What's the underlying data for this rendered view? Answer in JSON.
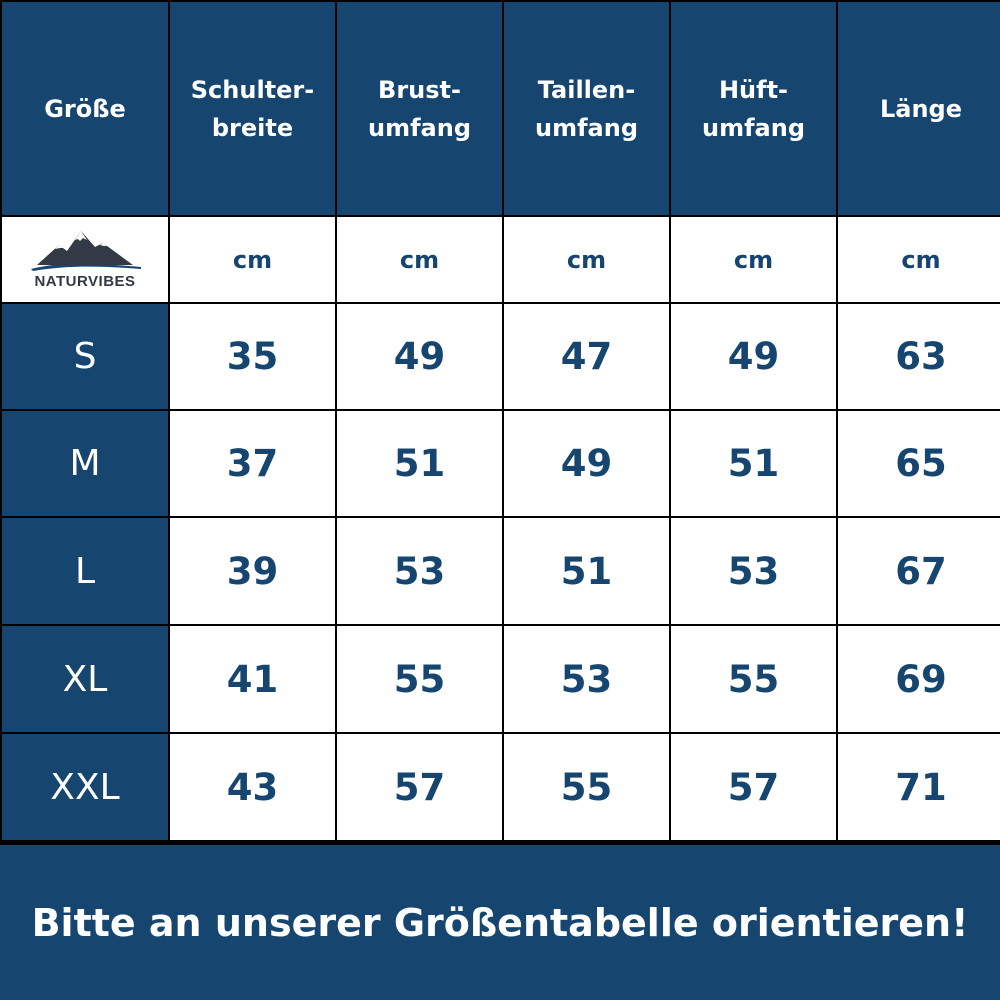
{
  "table": {
    "header": {
      "size": "Größe",
      "columns": [
        "Schulter-\nbreite",
        "Brust-\numfang",
        "Taillen-\numfang",
        "Hüft-\numfang",
        "Länge"
      ]
    },
    "brand": "NATURVIBES",
    "brand_logo": "mountain-icon",
    "units": [
      "cm",
      "cm",
      "cm",
      "cm",
      "cm"
    ],
    "rows": [
      {
        "size": "S",
        "values": [
          "35",
          "49",
          "47",
          "49",
          "63"
        ]
      },
      {
        "size": "M",
        "values": [
          "37",
          "51",
          "49",
          "51",
          "65"
        ]
      },
      {
        "size": "L",
        "values": [
          "39",
          "53",
          "51",
          "53",
          "67"
        ]
      },
      {
        "size": "XL",
        "values": [
          "41",
          "55",
          "53",
          "55",
          "69"
        ]
      },
      {
        "size": "XXL",
        "values": [
          "43",
          "57",
          "55",
          "57",
          "71"
        ]
      }
    ]
  },
  "footer": {
    "text": "Bitte an unserer Größentabelle orientieren!"
  },
  "colors": {
    "primary": "#164670",
    "white": "#ffffff",
    "border": "#000000"
  }
}
